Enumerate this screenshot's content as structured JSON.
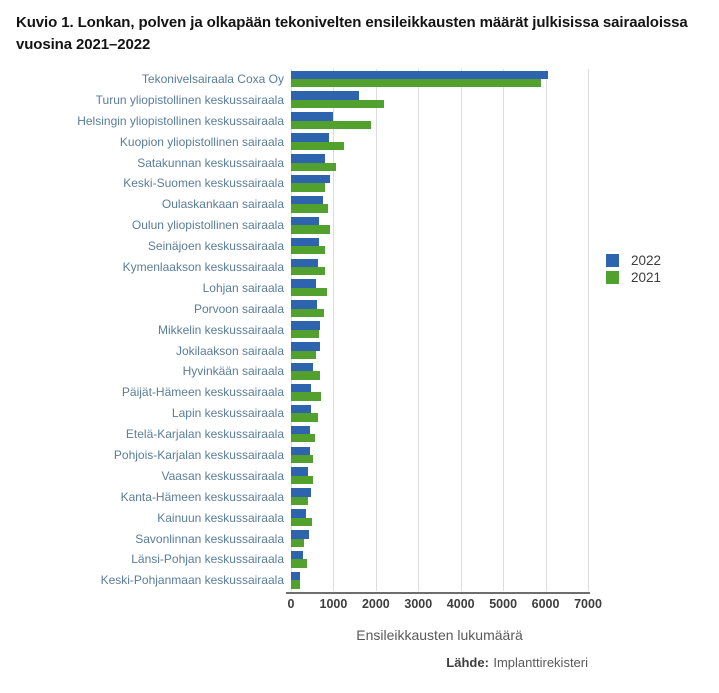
{
  "title": "Kuvio 1. Lonkan, polven ja olkapään tekonivelten ensileikkausten määrät julkisissa sairaaloissa vuosina 2021–2022",
  "xlabel": "Ensileikkausten lukumäärä",
  "source": {
    "label": "Lähde:",
    "value": "Implanttirekisteri"
  },
  "colors": {
    "bar_2022": "#2e64ad",
    "bar_2021": "#52a02e",
    "category_label": "#5a7d99",
    "gridline": "#dcdcdc",
    "axis_line": "#6e6e6e",
    "tick_label": "#3d3d3d"
  },
  "chart_data": {
    "type": "bar",
    "orientation": "horizontal",
    "title": "Kuvio 1. Lonkan, polven ja olkapään tekonivelten ensileikkausten määrät julkisissa sairaaloissa vuosina 2021–2022",
    "xlabel": "Ensileikkausten lukumäärä",
    "ylabel": "",
    "xlim": [
      0,
      7000
    ],
    "xticks": [
      0,
      1000,
      2000,
      3000,
      4000,
      5000,
      6000,
      7000
    ],
    "grid": true,
    "legend_position": "right",
    "categories": [
      "Tekonivelsairaala Coxa Oy",
      "Turun yliopistollinen keskussairaala",
      "Helsingin yliopistollinen keskussairaala",
      "Kuopion yliopistollinen sairaala",
      "Satakunnan keskussairaala",
      "Keski-Suomen keskussairaala",
      "Oulaskankaan sairaala",
      "Oulun yliopistollinen sairaala",
      "Seinäjoen keskussairaala",
      "Kymenlaakson keskussairaala",
      "Lohjan sairaala",
      "Porvoon sairaala",
      "Mikkelin keskussairaala",
      "Jokilaakson sairaala",
      "Hyvinkään sairaala",
      "Päijät-Hämeen keskussairaala",
      "Lapin keskussairaala",
      "Etelä-Karjalan keskussairaala",
      "Pohjois-Karjalan keskussairaala",
      "Vaasan keskussairaala",
      "Kanta-Hämeen keskussairaala",
      "Kainuun keskussairaala",
      "Savonlinnan keskussairaala",
      "Länsi-Pohjan keskussairaala",
      "Keski-Pohjanmaan keskussairaala"
    ],
    "series": [
      {
        "name": "2022",
        "color": "#2e64ad",
        "values": [
          6060,
          1600,
          1000,
          900,
          790,
          920,
          750,
          650,
          650,
          640,
          580,
          610,
          680,
          680,
          530,
          480,
          460,
          440,
          440,
          400,
          470,
          350,
          420,
          280,
          210
        ]
      },
      {
        "name": "2021",
        "color": "#52a02e",
        "values": [
          5890,
          2190,
          1890,
          1240,
          1050,
          810,
          870,
          920,
          800,
          810,
          850,
          780,
          650,
          600,
          680,
          710,
          640,
          570,
          530,
          520,
          410,
          490,
          310,
          380,
          220
        ]
      }
    ]
  }
}
